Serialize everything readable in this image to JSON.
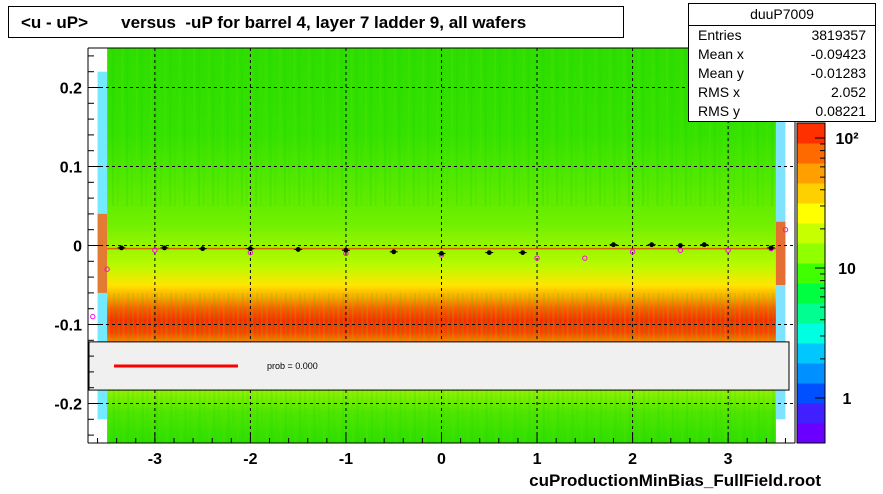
{
  "title": "<u - uP>       versus  -uP for barrel 4, layer 7 ladder 9, all wafers",
  "stats": {
    "name": "duuP7009",
    "rows": [
      {
        "key": "Entries",
        "value": "3819357"
      },
      {
        "key": "Mean x",
        "value": "-0.09423"
      },
      {
        "key": "Mean y",
        "value": "-0.01283"
      },
      {
        "key": "RMS x",
        "value": "2.052"
      },
      {
        "key": "RMS y",
        "value": "0.08221"
      }
    ]
  },
  "footer": "cuProductionMinBias_FullField.root",
  "legend": {
    "fit_label": "prob = 0.000",
    "line_color": "#ff0000"
  },
  "colors": {
    "profile_markers": "#000000",
    "profile_secondary": "#ff00ff",
    "fit_line": "#ff0000"
  },
  "chart_data": {
    "type": "heatmap",
    "xlim": [
      -3.7,
      3.7
    ],
    "ylim": [
      -0.25,
      0.25
    ],
    "x_ticks": [
      -3,
      -2,
      -1,
      0,
      1,
      2,
      3
    ],
    "y_ticks": [
      -0.2,
      -0.1,
      0,
      0.1,
      0.2
    ],
    "y_tick_labels": [
      "-0.2",
      "-0.1",
      "0",
      "0.1",
      "0.2"
    ],
    "grid": true,
    "z_scale": "log",
    "z_ticks": [
      {
        "value": 1,
        "label": "1"
      },
      {
        "value": 10,
        "label": "10"
      },
      {
        "value": 100,
        "label": "10²"
      }
    ],
    "colorbar": [
      "#6a00ff",
      "#4020ff",
      "#0050ff",
      "#0090ff",
      "#00c8ff",
      "#00ffe0",
      "#00ff90",
      "#00ff40",
      "#40ff00",
      "#90ff00",
      "#c8ff00",
      "#ffff00",
      "#ffd000",
      "#ffa000",
      "#ff6a00",
      "#ff3000"
    ],
    "profile": {
      "x": [
        -3.35,
        -2.9,
        -2.5,
        -2.0,
        -1.5,
        -1.0,
        -0.5,
        0.0,
        0.5,
        0.85,
        1.8,
        2.2,
        2.5,
        2.75,
        3.45
      ],
      "y": [
        -0.003,
        -0.003,
        -0.004,
        -0.004,
        -0.005,
        -0.006,
        -0.008,
        -0.01,
        -0.009,
        -0.009,
        0.001,
        0.001,
        0.0,
        0.001,
        -0.003
      ]
    },
    "profile_secondary": {
      "x": [
        -3.65,
        -3.5,
        -3.0,
        -2.0,
        -1.0,
        0.0,
        1.0,
        1.5,
        2.0,
        2.5,
        3.0,
        3.45,
        3.6
      ],
      "y": [
        -0.09,
        -0.03,
        -0.006,
        -0.009,
        -0.01,
        -0.012,
        -0.016,
        -0.016,
        -0.008,
        -0.006,
        -0.006,
        -0.004,
        0.02
      ]
    }
  }
}
